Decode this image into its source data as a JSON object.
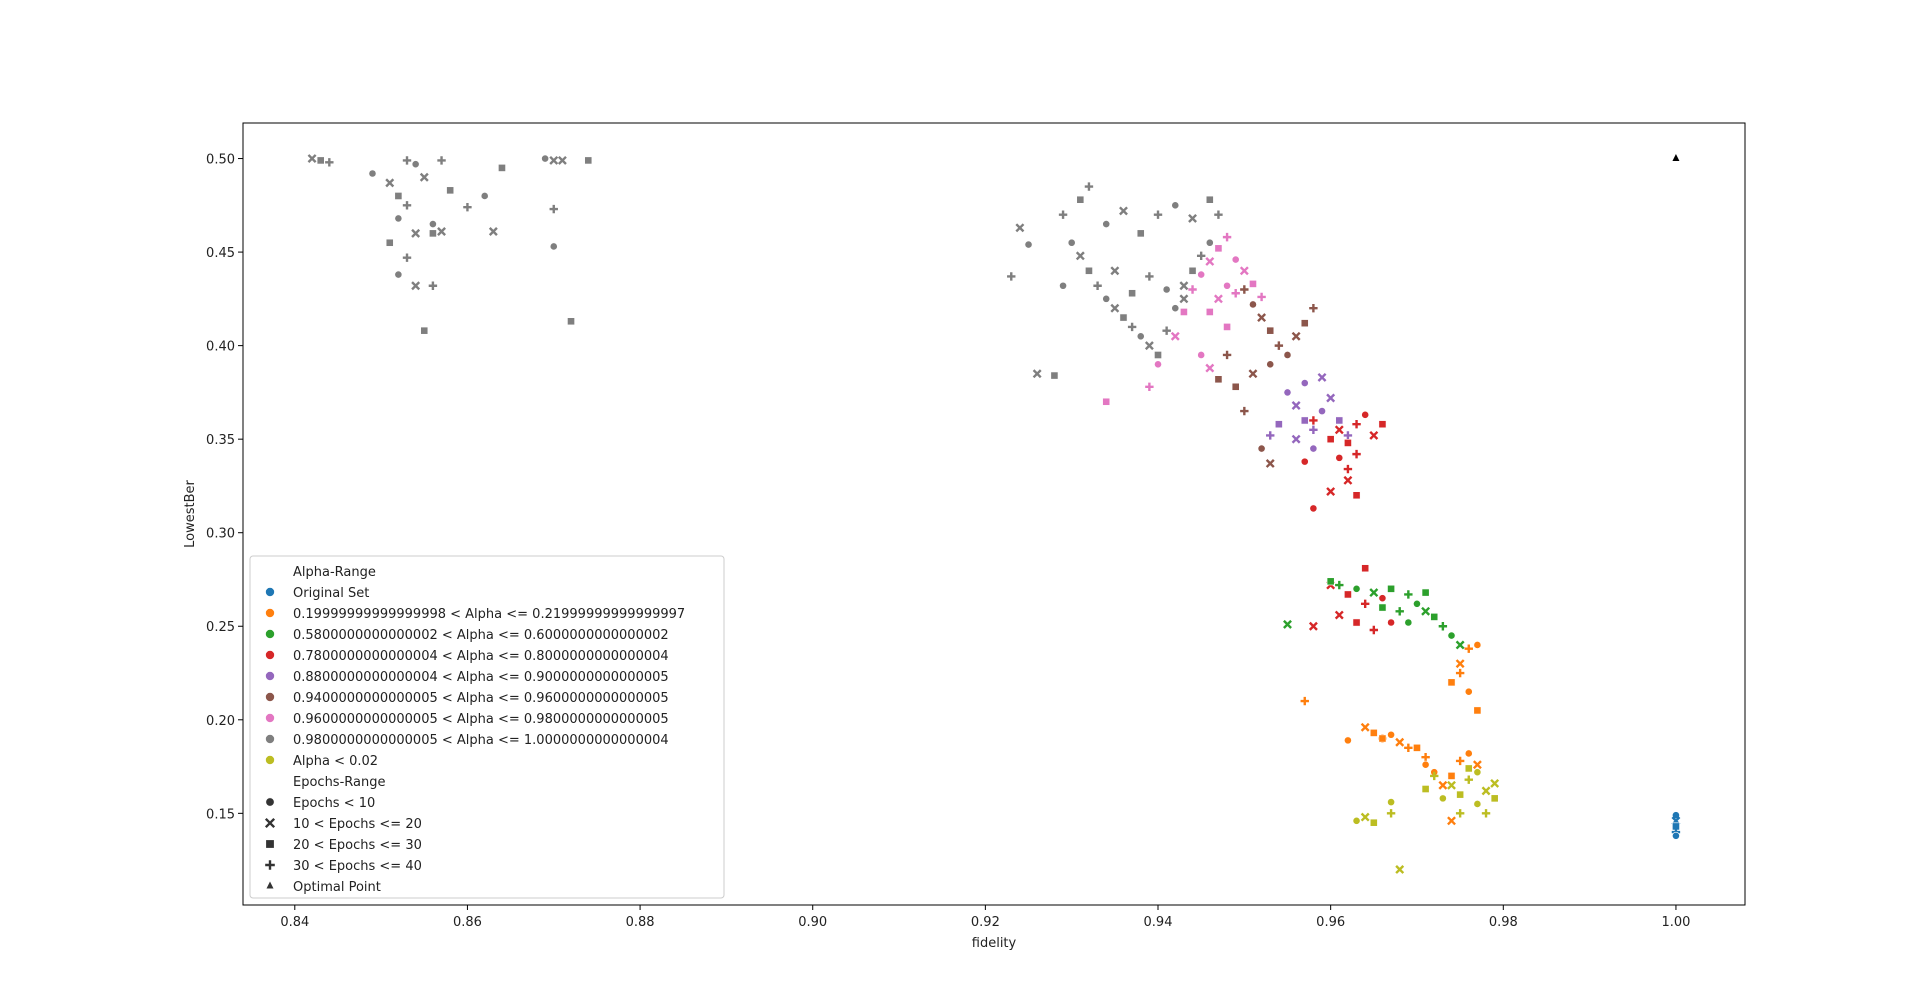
{
  "chart_data": {
    "type": "scatter",
    "title": "",
    "xlabel": "fidelity",
    "ylabel": "LowestBer",
    "xlim": [
      0.834,
      1.008
    ],
    "ylim": [
      0.101,
      0.519
    ],
    "xticks": [
      0.84,
      0.86,
      0.88,
      0.9,
      0.92,
      0.94,
      0.96,
      0.98,
      1.0
    ],
    "xtick_labels": [
      "0.84",
      "0.86",
      "0.88",
      "0.90",
      "0.92",
      "0.94",
      "0.96",
      "0.98",
      "1.00"
    ],
    "yticks": [
      0.15,
      0.2,
      0.25,
      0.3,
      0.35,
      0.4,
      0.45,
      0.5
    ],
    "ytick_labels": [
      "0.15",
      "0.20",
      "0.25",
      "0.30",
      "0.35",
      "0.40",
      "0.45",
      "0.50"
    ],
    "grid": false,
    "legend_position": "lower-left",
    "legend": {
      "hue_title": "Alpha-Range",
      "hue_entries": [
        {
          "label": "Original Set",
          "color": "#1f77b4"
        },
        {
          "label": "0.19999999999999998 < Alpha <= 0.21999999999999997",
          "color": "#ff7f0e"
        },
        {
          "label": "0.5800000000000002 < Alpha <= 0.6000000000000002",
          "color": "#2ca02c"
        },
        {
          "label": "0.7800000000000004 < Alpha <= 0.8000000000000004",
          "color": "#d62728"
        },
        {
          "label": "0.8800000000000004 < Alpha <= 0.9000000000000005",
          "color": "#9467bd"
        },
        {
          "label": "0.9400000000000005 < Alpha <= 0.9600000000000005",
          "color": "#8c564b"
        },
        {
          "label": "0.9600000000000005 < Alpha <= 0.9800000000000005",
          "color": "#e377c2"
        },
        {
          "label": "0.9800000000000005 < Alpha <= 1.0000000000000004",
          "color": "#7f7f7f"
        },
        {
          "label": " Alpha < 0.02",
          "color": "#bcbd22"
        }
      ],
      "style_title": "Epochs-Range",
      "style_entries": [
        {
          "label": " Epochs < 10",
          "marker": "circle"
        },
        {
          "label": "10 < Epochs <= 20",
          "marker": "x"
        },
        {
          "label": "20 < Epochs <= 30",
          "marker": "square"
        },
        {
          "label": "30 < Epochs <= 40",
          "marker": "plus"
        },
        {
          "label": "Optimal Point",
          "marker": "triangle"
        }
      ]
    },
    "optimal_point": {
      "x": 1.0,
      "y": 0.5
    },
    "series": [
      {
        "color": "#1f77b4",
        "points": [
          [
            1.0,
            0.149
          ],
          [
            1.0,
            0.146
          ],
          [
            1.0,
            0.143
          ],
          [
            1.0,
            0.14
          ],
          [
            1.0,
            0.138
          ]
        ]
      },
      {
        "color": "#7f7f7f",
        "points": [
          [
            0.842,
            0.5
          ],
          [
            0.843,
            0.499
          ],
          [
            0.844,
            0.498
          ],
          [
            0.849,
            0.492
          ],
          [
            0.851,
            0.487
          ],
          [
            0.852,
            0.48
          ],
          [
            0.853,
            0.475
          ],
          [
            0.852,
            0.468
          ],
          [
            0.854,
            0.46
          ],
          [
            0.851,
            0.455
          ],
          [
            0.853,
            0.447
          ],
          [
            0.852,
            0.438
          ],
          [
            0.854,
            0.432
          ],
          [
            0.855,
            0.408
          ],
          [
            0.856,
            0.432
          ],
          [
            0.856,
            0.465
          ],
          [
            0.857,
            0.461
          ],
          [
            0.858,
            0.483
          ],
          [
            0.86,
            0.474
          ],
          [
            0.862,
            0.48
          ],
          [
            0.863,
            0.461
          ],
          [
            0.864,
            0.495
          ],
          [
            0.87,
            0.473
          ],
          [
            0.87,
            0.453
          ],
          [
            0.871,
            0.499
          ],
          [
            0.872,
            0.413
          ],
          [
            0.853,
            0.499
          ],
          [
            0.854,
            0.497
          ],
          [
            0.855,
            0.49
          ],
          [
            0.856,
            0.46
          ],
          [
            0.857,
            0.499
          ],
          [
            0.869,
            0.5
          ],
          [
            0.87,
            0.499
          ],
          [
            0.874,
            0.499
          ],
          [
            0.929,
            0.47
          ],
          [
            0.93,
            0.455
          ],
          [
            0.931,
            0.448
          ],
          [
            0.932,
            0.44
          ],
          [
            0.933,
            0.432
          ],
          [
            0.934,
            0.425
          ],
          [
            0.935,
            0.42
          ],
          [
            0.936,
            0.415
          ],
          [
            0.937,
            0.41
          ],
          [
            0.938,
            0.405
          ],
          [
            0.939,
            0.4
          ],
          [
            0.94,
            0.395
          ],
          [
            0.941,
            0.408
          ],
          [
            0.942,
            0.42
          ],
          [
            0.943,
            0.432
          ],
          [
            0.944,
            0.44
          ],
          [
            0.945,
            0.448
          ],
          [
            0.946,
            0.455
          ],
          [
            0.926,
            0.385
          ],
          [
            0.928,
            0.384
          ],
          [
            0.923,
            0.437
          ],
          [
            0.925,
            0.454
          ],
          [
            0.924,
            0.463
          ],
          [
            0.931,
            0.478
          ],
          [
            0.932,
            0.485
          ],
          [
            0.934,
            0.465
          ],
          [
            0.936,
            0.472
          ],
          [
            0.938,
            0.46
          ],
          [
            0.94,
            0.47
          ],
          [
            0.942,
            0.475
          ],
          [
            0.944,
            0.468
          ],
          [
            0.946,
            0.478
          ],
          [
            0.947,
            0.47
          ],
          [
            0.929,
            0.432
          ],
          [
            0.935,
            0.44
          ],
          [
            0.937,
            0.428
          ],
          [
            0.939,
            0.437
          ],
          [
            0.941,
            0.43
          ],
          [
            0.943,
            0.425
          ]
        ]
      },
      {
        "color": "#e377c2",
        "points": [
          [
            0.934,
            0.37
          ],
          [
            0.939,
            0.378
          ],
          [
            0.94,
            0.39
          ],
          [
            0.942,
            0.405
          ],
          [
            0.943,
            0.418
          ],
          [
            0.944,
            0.43
          ],
          [
            0.945,
            0.438
          ],
          [
            0.946,
            0.445
          ],
          [
            0.947,
            0.452
          ],
          [
            0.948,
            0.458
          ],
          [
            0.949,
            0.446
          ],
          [
            0.95,
            0.44
          ],
          [
            0.951,
            0.433
          ],
          [
            0.952,
            0.426
          ],
          [
            0.948,
            0.432
          ],
          [
            0.947,
            0.425
          ],
          [
            0.946,
            0.418
          ],
          [
            0.949,
            0.428
          ],
          [
            0.945,
            0.395
          ],
          [
            0.946,
            0.388
          ],
          [
            0.948,
            0.41
          ]
        ]
      },
      {
        "color": "#8c564b",
        "points": [
          [
            0.95,
            0.43
          ],
          [
            0.951,
            0.422
          ],
          [
            0.952,
            0.415
          ],
          [
            0.953,
            0.408
          ],
          [
            0.954,
            0.4
          ],
          [
            0.955,
            0.395
          ],
          [
            0.956,
            0.405
          ],
          [
            0.957,
            0.412
          ],
          [
            0.958,
            0.42
          ],
          [
            0.953,
            0.39
          ],
          [
            0.951,
            0.385
          ],
          [
            0.949,
            0.378
          ],
          [
            0.95,
            0.365
          ],
          [
            0.952,
            0.345
          ],
          [
            0.953,
            0.337
          ],
          [
            0.947,
            0.382
          ],
          [
            0.948,
            0.395
          ]
        ]
      },
      {
        "color": "#9467bd",
        "points": [
          [
            0.955,
            0.375
          ],
          [
            0.956,
            0.368
          ],
          [
            0.957,
            0.36
          ],
          [
            0.958,
            0.355
          ],
          [
            0.959,
            0.365
          ],
          [
            0.96,
            0.372
          ],
          [
            0.961,
            0.36
          ],
          [
            0.962,
            0.352
          ],
          [
            0.958,
            0.345
          ],
          [
            0.956,
            0.35
          ],
          [
            0.954,
            0.358
          ],
          [
            0.953,
            0.352
          ],
          [
            0.957,
            0.38
          ],
          [
            0.959,
            0.383
          ]
        ]
      },
      {
        "color": "#d62728",
        "points": [
          [
            0.961,
            0.355
          ],
          [
            0.962,
            0.348
          ],
          [
            0.963,
            0.358
          ],
          [
            0.964,
            0.363
          ],
          [
            0.965,
            0.352
          ],
          [
            0.966,
            0.358
          ],
          [
            0.963,
            0.342
          ],
          [
            0.961,
            0.34
          ],
          [
            0.962,
            0.328
          ],
          [
            0.963,
            0.32
          ],
          [
            0.962,
            0.334
          ],
          [
            0.958,
            0.313
          ],
          [
            0.96,
            0.322
          ],
          [
            0.96,
            0.35
          ],
          [
            0.958,
            0.36
          ],
          [
            0.957,
            0.338
          ],
          [
            0.96,
            0.272
          ],
          [
            0.962,
            0.267
          ],
          [
            0.964,
            0.262
          ],
          [
            0.966,
            0.265
          ],
          [
            0.961,
            0.256
          ],
          [
            0.963,
            0.252
          ],
          [
            0.965,
            0.248
          ],
          [
            0.967,
            0.252
          ],
          [
            0.958,
            0.25
          ],
          [
            0.964,
            0.281
          ]
        ]
      },
      {
        "color": "#2ca02c",
        "points": [
          [
            0.96,
            0.274
          ],
          [
            0.961,
            0.272
          ],
          [
            0.963,
            0.27
          ],
          [
            0.965,
            0.268
          ],
          [
            0.967,
            0.27
          ],
          [
            0.969,
            0.267
          ],
          [
            0.97,
            0.262
          ],
          [
            0.971,
            0.258
          ],
          [
            0.972,
            0.255
          ],
          [
            0.973,
            0.25
          ],
          [
            0.974,
            0.245
          ],
          [
            0.975,
            0.24
          ],
          [
            0.966,
            0.26
          ],
          [
            0.968,
            0.258
          ],
          [
            0.969,
            0.252
          ],
          [
            0.955,
            0.251
          ],
          [
            0.971,
            0.268
          ]
        ]
      },
      {
        "color": "#ff7f0e",
        "points": [
          [
            0.957,
            0.21
          ],
          [
            0.962,
            0.189
          ],
          [
            0.964,
            0.196
          ],
          [
            0.965,
            0.193
          ],
          [
            0.966,
            0.19
          ],
          [
            0.967,
            0.192
          ],
          [
            0.968,
            0.188
          ],
          [
            0.97,
            0.185
          ],
          [
            0.971,
            0.18
          ],
          [
            0.972,
            0.172
          ],
          [
            0.973,
            0.165
          ],
          [
            0.974,
            0.17
          ],
          [
            0.975,
            0.178
          ],
          [
            0.976,
            0.182
          ],
          [
            0.977,
            0.176
          ],
          [
            0.977,
            0.205
          ],
          [
            0.976,
            0.238
          ],
          [
            0.977,
            0.24
          ],
          [
            0.975,
            0.23
          ],
          [
            0.974,
            0.22
          ],
          [
            0.975,
            0.225
          ],
          [
            0.976,
            0.215
          ],
          [
            0.974,
            0.146
          ],
          [
            0.966,
            0.19
          ],
          [
            0.969,
            0.185
          ],
          [
            0.971,
            0.176
          ]
        ]
      },
      {
        "color": "#bcbd22",
        "points": [
          [
            0.963,
            0.146
          ],
          [
            0.964,
            0.148
          ],
          [
            0.965,
            0.145
          ],
          [
            0.967,
            0.15
          ],
          [
            0.967,
            0.156
          ],
          [
            0.968,
            0.12
          ],
          [
            0.971,
            0.163
          ],
          [
            0.972,
            0.17
          ],
          [
            0.973,
            0.158
          ],
          [
            0.974,
            0.165
          ],
          [
            0.975,
            0.16
          ],
          [
            0.976,
            0.168
          ],
          [
            0.977,
            0.155
          ],
          [
            0.978,
            0.162
          ],
          [
            0.979,
            0.158
          ],
          [
            0.978,
            0.15
          ],
          [
            0.977,
            0.172
          ],
          [
            0.979,
            0.166
          ],
          [
            0.976,
            0.174
          ],
          [
            0.975,
            0.15
          ]
        ]
      }
    ]
  }
}
